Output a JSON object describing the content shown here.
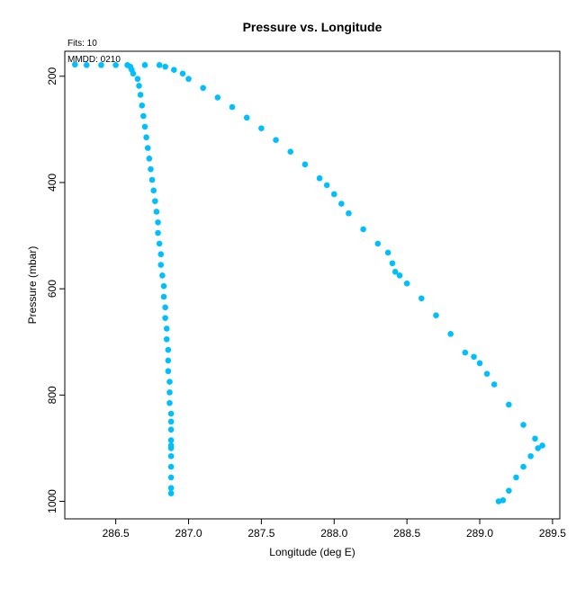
{
  "chart_data": {
    "type": "scatter",
    "title": "Pressure vs. Longitude",
    "xlabel": "Longitude (deg E)",
    "ylabel": "Pressure (mbar)",
    "xlim": [
      286.15,
      289.55
    ],
    "ylim": [
      1033,
      153
    ],
    "y_reversed": true,
    "grid": false,
    "legend": "none",
    "marker_color": "#00bfff",
    "annotations": {
      "fits": "Fits: 10",
      "mmdd": "MMDD: 0210"
    },
    "x_ticks": [
      {
        "value": 286.5,
        "label": "286.5"
      },
      {
        "value": 287.0,
        "label": "287.0"
      },
      {
        "value": 287.5,
        "label": "287.5"
      },
      {
        "value": 288.0,
        "label": "288.0"
      },
      {
        "value": 288.5,
        "label": "288.5"
      },
      {
        "value": 289.0,
        "label": "289.0"
      },
      {
        "value": 289.5,
        "label": "289.5"
      }
    ],
    "y_ticks": [
      {
        "value": 200,
        "label": "200"
      },
      {
        "value": 400,
        "label": "400"
      },
      {
        "value": 600,
        "label": "600"
      },
      {
        "value": 800,
        "label": "800"
      },
      {
        "value": 1000,
        "label": "1000"
      }
    ],
    "series": [
      {
        "points": [
          {
            "x": 286.88,
            "y": 985
          },
          {
            "x": 286.88,
            "y": 975
          },
          {
            "x": 286.88,
            "y": 955
          },
          {
            "x": 286.88,
            "y": 935
          },
          {
            "x": 286.88,
            "y": 915
          },
          {
            "x": 286.88,
            "y": 900
          },
          {
            "x": 286.88,
            "y": 895
          },
          {
            "x": 286.88,
            "y": 885
          },
          {
            "x": 286.88,
            "y": 865
          },
          {
            "x": 286.88,
            "y": 850
          },
          {
            "x": 286.88,
            "y": 835
          },
          {
            "x": 286.87,
            "y": 815
          },
          {
            "x": 286.87,
            "y": 795
          },
          {
            "x": 286.87,
            "y": 775
          },
          {
            "x": 286.86,
            "y": 755
          },
          {
            "x": 286.86,
            "y": 735
          },
          {
            "x": 286.86,
            "y": 715
          },
          {
            "x": 286.85,
            "y": 695
          },
          {
            "x": 286.85,
            "y": 675
          },
          {
            "x": 286.84,
            "y": 655
          },
          {
            "x": 286.84,
            "y": 635
          },
          {
            "x": 286.83,
            "y": 615
          },
          {
            "x": 286.83,
            "y": 595
          },
          {
            "x": 286.82,
            "y": 575
          },
          {
            "x": 286.81,
            "y": 555
          },
          {
            "x": 286.81,
            "y": 535
          },
          {
            "x": 286.8,
            "y": 515
          },
          {
            "x": 286.79,
            "y": 495
          },
          {
            "x": 286.79,
            "y": 475
          },
          {
            "x": 286.78,
            "y": 455
          },
          {
            "x": 286.77,
            "y": 435
          },
          {
            "x": 286.76,
            "y": 415
          },
          {
            "x": 286.75,
            "y": 395
          },
          {
            "x": 286.74,
            "y": 375
          },
          {
            "x": 286.73,
            "y": 355
          },
          {
            "x": 286.72,
            "y": 335
          },
          {
            "x": 286.71,
            "y": 315
          },
          {
            "x": 286.7,
            "y": 295
          },
          {
            "x": 286.69,
            "y": 275
          },
          {
            "x": 286.68,
            "y": 255
          },
          {
            "x": 286.67,
            "y": 235
          },
          {
            "x": 286.66,
            "y": 218
          },
          {
            "x": 286.65,
            "y": 205
          },
          {
            "x": 286.62,
            "y": 195
          },
          {
            "x": 286.61,
            "y": 188
          },
          {
            "x": 286.6,
            "y": 182
          },
          {
            "x": 286.58,
            "y": 179
          },
          {
            "x": 286.5,
            "y": 179
          },
          {
            "x": 286.4,
            "y": 179
          },
          {
            "x": 286.3,
            "y": 179
          },
          {
            "x": 286.22,
            "y": 178
          },
          {
            "x": 286.7,
            "y": 179
          },
          {
            "x": 286.8,
            "y": 179
          },
          {
            "x": 286.84,
            "y": 182
          },
          {
            "x": 286.9,
            "y": 188
          },
          {
            "x": 286.96,
            "y": 195
          },
          {
            "x": 287.0,
            "y": 205
          },
          {
            "x": 287.1,
            "y": 222
          },
          {
            "x": 287.2,
            "y": 240
          },
          {
            "x": 287.3,
            "y": 258
          },
          {
            "x": 287.4,
            "y": 278
          },
          {
            "x": 287.5,
            "y": 298
          },
          {
            "x": 287.6,
            "y": 320
          },
          {
            "x": 287.7,
            "y": 342
          },
          {
            "x": 287.8,
            "y": 366
          },
          {
            "x": 287.9,
            "y": 392
          },
          {
            "x": 287.95,
            "y": 405
          },
          {
            "x": 288.0,
            "y": 422
          },
          {
            "x": 288.05,
            "y": 440
          },
          {
            "x": 288.1,
            "y": 458
          },
          {
            "x": 288.2,
            "y": 488
          },
          {
            "x": 288.3,
            "y": 515
          },
          {
            "x": 288.37,
            "y": 532
          },
          {
            "x": 288.4,
            "y": 552
          },
          {
            "x": 288.42,
            "y": 568
          },
          {
            "x": 288.45,
            "y": 575
          },
          {
            "x": 288.5,
            "y": 590
          },
          {
            "x": 288.6,
            "y": 618
          },
          {
            "x": 288.7,
            "y": 650
          },
          {
            "x": 288.8,
            "y": 685
          },
          {
            "x": 288.9,
            "y": 720
          },
          {
            "x": 288.96,
            "y": 728
          },
          {
            "x": 289.0,
            "y": 740
          },
          {
            "x": 289.05,
            "y": 760
          },
          {
            "x": 289.1,
            "y": 780
          },
          {
            "x": 289.2,
            "y": 818
          },
          {
            "x": 289.3,
            "y": 856
          },
          {
            "x": 289.38,
            "y": 882
          },
          {
            "x": 289.43,
            "y": 895
          },
          {
            "x": 289.4,
            "y": 900
          },
          {
            "x": 289.35,
            "y": 915
          },
          {
            "x": 289.3,
            "y": 935
          },
          {
            "x": 289.25,
            "y": 955
          },
          {
            "x": 289.2,
            "y": 980
          },
          {
            "x": 289.16,
            "y": 998
          },
          {
            "x": 289.13,
            "y": 1000
          }
        ]
      }
    ]
  }
}
